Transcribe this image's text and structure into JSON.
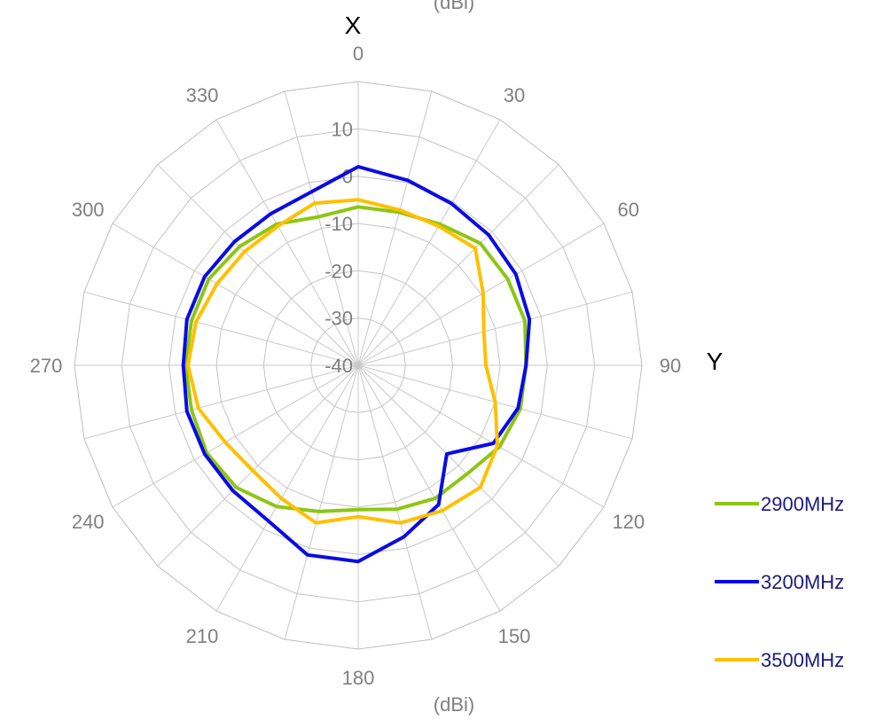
{
  "chart_data": {
    "type": "polar-line",
    "unit_top": "(dBi)",
    "unit_bottom": "(dBi)",
    "axis_x_label": "X",
    "axis_y_label": "Y",
    "angle_labels": [
      "0",
      "30",
      "60",
      "90",
      "120",
      "150",
      "180",
      "210",
      "240",
      "270",
      "300",
      "330"
    ],
    "r_ticks": [
      10,
      0,
      -10,
      -20,
      -30,
      -40
    ],
    "r_tick_labels": [
      "10",
      "0",
      "-10",
      "-20",
      "-30",
      "-40"
    ],
    "r_min": -40,
    "r_max": 20,
    "angles": [
      0,
      15,
      30,
      45,
      60,
      75,
      90,
      105,
      120,
      135,
      150,
      165,
      180,
      195,
      210,
      225,
      240,
      255,
      270,
      285,
      300,
      315,
      330,
      345
    ],
    "series": [
      {
        "name": "2900MHz",
        "color": "#8cc614",
        "values": [
          -6.5,
          -6.5,
          -5.5,
          -3.5,
          -3.5,
          -3.5,
          -4.5,
          -4.5,
          -5.5,
          -7.5,
          -7.5,
          -8.5,
          -9.5,
          -8,
          -5.5,
          -3.5,
          -3,
          -3.5,
          -3.5,
          -3.5,
          -3.5,
          -4.5,
          -5.5,
          -7.5
        ]
      },
      {
        "name": "3200MHz",
        "color": "#0a0ae6",
        "values": [
          2,
          0.5,
          -0.5,
          -1,
          -1.5,
          -2.5,
          -4.5,
          -5,
          -7,
          -13.5,
          -6,
          -2.5,
          1.5,
          1.5,
          -2,
          -2.5,
          -2.5,
          -2.5,
          -3,
          -2.5,
          -2.5,
          -3,
          -3,
          -2
        ]
      },
      {
        "name": "3500MHz",
        "color": "#ffc000",
        "values": [
          -5,
          -6,
          -6,
          -5,
          -9.5,
          -12.5,
          -13,
          -10,
          -6,
          -3.5,
          -4.5,
          -5.5,
          -8,
          -5.5,
          -7.5,
          -8.5,
          -7.5,
          -5,
          -4,
          -4.5,
          -5.5,
          -6,
          -6,
          -4.5
        ]
      }
    ]
  }
}
